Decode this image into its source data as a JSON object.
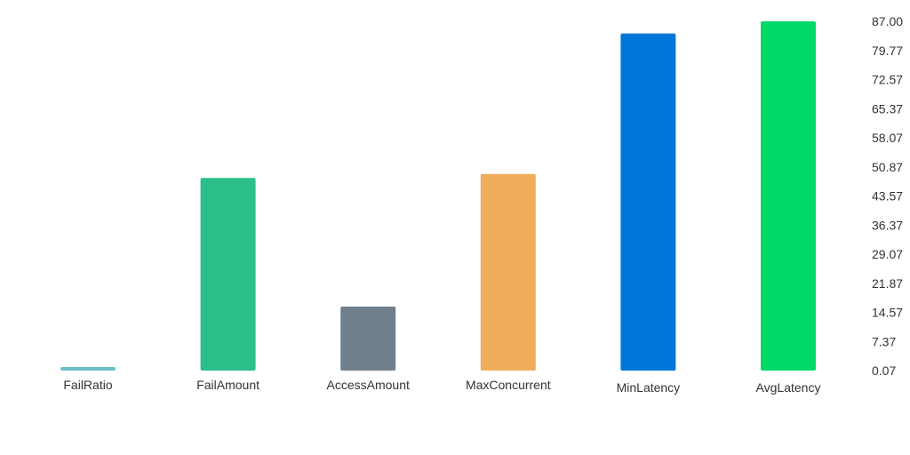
{
  "chart_data": {
    "type": "bar",
    "categories": [
      "FailRatio",
      "FailAmount",
      "AccessAmount",
      "MaxConcurrent",
      "MinLatency",
      "AvgLatency"
    ],
    "values": [
      0.9,
      48,
      16,
      49,
      84,
      87
    ],
    "colors": [
      "#6ac0c9",
      "#2bbf8a",
      "#6f7f8b",
      "#f0ad5b",
      "#0075d8",
      "#00d866"
    ],
    "y_ticks": [
      "0.07",
      "7.37",
      "14.57",
      "21.87",
      "29.07",
      "36.37",
      "43.57",
      "50.87",
      "58.07",
      "65.37",
      "72.57",
      "79.77",
      "87.00"
    ],
    "ylim": [
      0.07,
      87.0
    ],
    "y_axis_side": "right",
    "grid": false,
    "legend": "none"
  }
}
